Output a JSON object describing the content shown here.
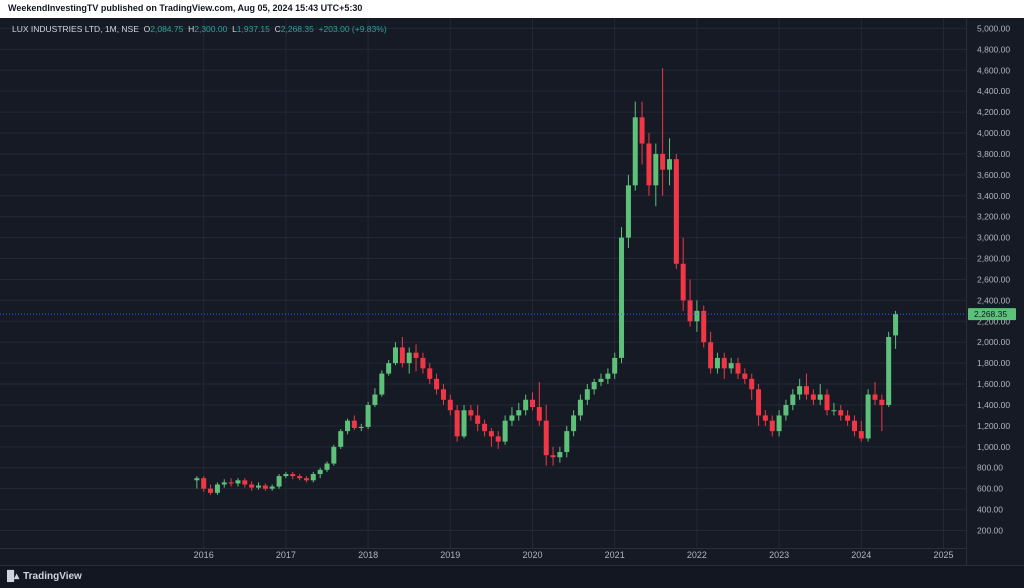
{
  "header": {
    "published": "WeekendInvestingTV published on TradingView.com, Aug 05, 2024 15:43 UTC+5:30"
  },
  "legend": {
    "symbol": "LUX INDUSTRIES LTD, 1M, NSE",
    "o_label": "O",
    "o_value": "2,084.75",
    "h_label": "H",
    "h_value": "2,300.00",
    "l_label": "L",
    "l_value": "1,937.15",
    "c_label": "C",
    "c_value": "2,268.35",
    "change": "+203.00 (+9.83%)"
  },
  "footer": {
    "brand": "TradingView"
  },
  "colors": {
    "up": "#26a69a",
    "up_body": "#5ec17a",
    "down": "#f23645",
    "grid": "#232837",
    "axis_text": "#b2b5be",
    "price_line": "#2962ff",
    "price_label_bg": "#5ec17a"
  },
  "chart_data": {
    "type": "candlestick",
    "title": "LUX INDUSTRIES LTD, 1M, NSE",
    "ylim": [
      170,
      5100
    ],
    "y_ticks": [
      "200.00",
      "400.00",
      "600.00",
      "800.00",
      "1,000.00",
      "1,200.00",
      "1,400.00",
      "1,600.00",
      "1,800.00",
      "2,000.00",
      "2,200.00",
      "2,400.00",
      "2,600.00",
      "2,800.00",
      "3,000.00",
      "3,200.00",
      "3,400.00",
      "3,600.00",
      "3,800.00",
      "4,000.00",
      "4,200.00",
      "4,400.00",
      "4,600.00",
      "4,800.00",
      "5,000.00"
    ],
    "x_ticks": [
      "2016",
      "2017",
      "2018",
      "2019",
      "2020",
      "2021",
      "2022",
      "2023",
      "2024",
      "2025"
    ],
    "last_price": "2,268.35",
    "grid": true,
    "candles": [
      [
        2015.917,
        680,
        700,
        600,
        720
      ],
      [
        2016.0,
        700,
        600,
        570,
        720
      ],
      [
        2016.083,
        600,
        560,
        540,
        640
      ],
      [
        2016.167,
        560,
        640,
        540,
        660
      ],
      [
        2016.25,
        640,
        660,
        610,
        690
      ],
      [
        2016.333,
        660,
        650,
        620,
        700
      ],
      [
        2016.417,
        650,
        680,
        620,
        700
      ],
      [
        2016.5,
        680,
        640,
        610,
        700
      ],
      [
        2016.583,
        640,
        610,
        580,
        670
      ],
      [
        2016.667,
        610,
        630,
        590,
        660
      ],
      [
        2016.75,
        630,
        600,
        580,
        650
      ],
      [
        2016.833,
        600,
        620,
        580,
        640
      ],
      [
        2016.917,
        620,
        720,
        600,
        740
      ],
      [
        2017.0,
        720,
        740,
        700,
        760
      ],
      [
        2017.083,
        740,
        720,
        690,
        760
      ],
      [
        2017.167,
        720,
        700,
        680,
        740
      ],
      [
        2017.25,
        700,
        680,
        660,
        720
      ],
      [
        2017.333,
        680,
        740,
        660,
        760
      ],
      [
        2017.417,
        740,
        780,
        700,
        800
      ],
      [
        2017.5,
        780,
        840,
        760,
        860
      ],
      [
        2017.583,
        840,
        1000,
        820,
        1020
      ],
      [
        2017.667,
        1000,
        1150,
        980,
        1170
      ],
      [
        2017.75,
        1150,
        1250,
        1120,
        1270
      ],
      [
        2017.833,
        1250,
        1180,
        1160,
        1300
      ],
      [
        2017.917,
        1180,
        1190,
        1150,
        1220
      ],
      [
        2018.0,
        1190,
        1400,
        1170,
        1430
      ],
      [
        2018.083,
        1400,
        1500,
        1380,
        1560
      ],
      [
        2018.167,
        1500,
        1700,
        1480,
        1730
      ],
      [
        2018.25,
        1700,
        1800,
        1680,
        1830
      ],
      [
        2018.333,
        1800,
        1950,
        1780,
        2000
      ],
      [
        2018.417,
        1950,
        1800,
        1760,
        2050
      ],
      [
        2018.5,
        1800,
        1900,
        1700,
        1950
      ],
      [
        2018.583,
        1900,
        1850,
        1720,
        1980
      ],
      [
        2018.667,
        1850,
        1750,
        1700,
        1900
      ],
      [
        2018.75,
        1750,
        1650,
        1600,
        1800
      ],
      [
        2018.833,
        1650,
        1550,
        1500,
        1700
      ],
      [
        2018.917,
        1550,
        1450,
        1400,
        1600
      ],
      [
        2019.0,
        1450,
        1350,
        1300,
        1500
      ],
      [
        2019.083,
        1350,
        1100,
        1050,
        1400
      ],
      [
        2019.167,
        1100,
        1350,
        1080,
        1400
      ],
      [
        2019.25,
        1350,
        1300,
        1250,
        1400
      ],
      [
        2019.333,
        1300,
        1220,
        1150,
        1400
      ],
      [
        2019.417,
        1220,
        1150,
        1100,
        1260
      ],
      [
        2019.5,
        1150,
        1100,
        1000,
        1180
      ],
      [
        2019.583,
        1100,
        1050,
        980,
        1150
      ],
      [
        2019.667,
        1050,
        1250,
        1020,
        1300
      ],
      [
        2019.75,
        1250,
        1300,
        1200,
        1380
      ],
      [
        2019.833,
        1300,
        1350,
        1250,
        1420
      ],
      [
        2019.917,
        1350,
        1450,
        1300,
        1500
      ],
      [
        2020.0,
        1450,
        1380,
        1350,
        1520
      ],
      [
        2020.083,
        1380,
        1250,
        1200,
        1620
      ],
      [
        2020.167,
        1250,
        920,
        820,
        1400
      ],
      [
        2020.25,
        920,
        900,
        820,
        1000
      ],
      [
        2020.333,
        900,
        950,
        850,
        1000
      ],
      [
        2020.417,
        950,
        1150,
        900,
        1200
      ],
      [
        2020.5,
        1150,
        1300,
        1100,
        1350
      ],
      [
        2020.583,
        1300,
        1450,
        1250,
        1500
      ],
      [
        2020.667,
        1450,
        1550,
        1400,
        1600
      ],
      [
        2020.75,
        1550,
        1620,
        1500,
        1650
      ],
      [
        2020.833,
        1620,
        1650,
        1580,
        1700
      ],
      [
        2020.917,
        1650,
        1700,
        1600,
        1750
      ],
      [
        2021.0,
        1700,
        1850,
        1650,
        1900
      ],
      [
        2021.083,
        1850,
        3000,
        1800,
        3100
      ],
      [
        2021.167,
        3000,
        3500,
        2900,
        3600
      ],
      [
        2021.25,
        3500,
        4150,
        3450,
        4300
      ],
      [
        2021.333,
        4150,
        3900,
        3700,
        4300
      ],
      [
        2021.417,
        3900,
        3500,
        3400,
        4000
      ],
      [
        2021.5,
        3500,
        3800,
        3300,
        3900
      ],
      [
        2021.583,
        3800,
        3650,
        3400,
        4620
      ],
      [
        2021.667,
        3650,
        3750,
        3500,
        3950
      ],
      [
        2021.75,
        3750,
        2750,
        2700,
        3800
      ],
      [
        2021.833,
        2750,
        2400,
        2300,
        3000
      ],
      [
        2021.917,
        2400,
        2200,
        2150,
        2600
      ],
      [
        2022.0,
        2200,
        2300,
        2100,
        2400
      ],
      [
        2022.083,
        2300,
        2000,
        1950,
        2350
      ],
      [
        2022.167,
        2000,
        1750,
        1700,
        2100
      ],
      [
        2022.25,
        1750,
        1850,
        1700,
        1900
      ],
      [
        2022.333,
        1850,
        1750,
        1650,
        1900
      ],
      [
        2022.417,
        1750,
        1800,
        1700,
        1850
      ],
      [
        2022.5,
        1800,
        1700,
        1650,
        1850
      ],
      [
        2022.583,
        1700,
        1650,
        1600,
        1750
      ],
      [
        2022.667,
        1650,
        1550,
        1450,
        1700
      ],
      [
        2022.75,
        1550,
        1300,
        1200,
        1600
      ],
      [
        2022.833,
        1300,
        1250,
        1200,
        1350
      ],
      [
        2022.917,
        1250,
        1150,
        1100,
        1300
      ],
      [
        2023.0,
        1150,
        1300,
        1100,
        1350
      ],
      [
        2023.083,
        1300,
        1400,
        1250,
        1450
      ],
      [
        2023.167,
        1400,
        1500,
        1350,
        1550
      ],
      [
        2023.25,
        1500,
        1580,
        1450,
        1650
      ],
      [
        2023.333,
        1580,
        1500,
        1450,
        1700
      ],
      [
        2023.417,
        1500,
        1450,
        1400,
        1550
      ],
      [
        2023.5,
        1450,
        1500,
        1400,
        1600
      ],
      [
        2023.583,
        1500,
        1350,
        1300,
        1550
      ],
      [
        2023.667,
        1350,
        1350,
        1300,
        1420
      ],
      [
        2023.75,
        1350,
        1300,
        1250,
        1400
      ],
      [
        2023.833,
        1300,
        1250,
        1200,
        1350
      ],
      [
        2023.917,
        1250,
        1150,
        1100,
        1300
      ],
      [
        2024.0,
        1150,
        1080,
        1050,
        1250
      ],
      [
        2024.083,
        1080,
        1500,
        1050,
        1550
      ],
      [
        2024.167,
        1500,
        1450,
        1400,
        1620
      ],
      [
        2024.25,
        1450,
        1400,
        1150,
        1500
      ],
      [
        2024.333,
        1400,
        2050,
        1380,
        2100
      ],
      [
        2024.417,
        2065,
        2270,
        1937,
        2300
      ]
    ]
  }
}
